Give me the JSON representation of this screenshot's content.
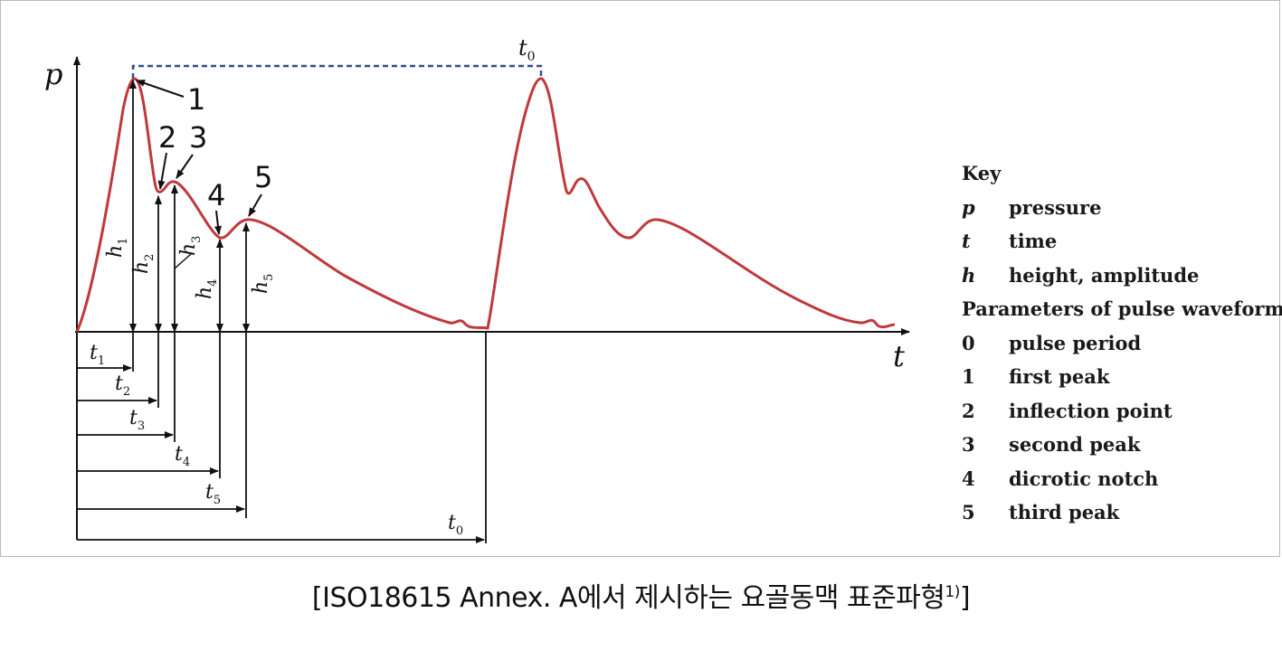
{
  "diagram": {
    "axis_p": "p",
    "axis_t": "t",
    "period_label": "t",
    "period_sub": "0",
    "point_labels": [
      "1",
      "2",
      "3",
      "4",
      "5"
    ],
    "heights": [
      {
        "sym": "h",
        "sub": "1"
      },
      {
        "sym": "h",
        "sub": "2"
      },
      {
        "sym": "h",
        "sub": "3"
      },
      {
        "sym": "h",
        "sub": "4"
      },
      {
        "sym": "h",
        "sub": "5"
      }
    ],
    "times": [
      {
        "sym": "t",
        "sub": "1"
      },
      {
        "sym": "t",
        "sub": "2"
      },
      {
        "sym": "t",
        "sub": "3"
      },
      {
        "sym": "t",
        "sub": "4"
      },
      {
        "sym": "t",
        "sub": "5"
      },
      {
        "sym": "t",
        "sub": "0"
      }
    ],
    "colors": {
      "waveform": "#c0393b",
      "period_dash": "#2f4f8f",
      "axes": "#111111"
    }
  },
  "key": {
    "title": "Key",
    "rows": [
      {
        "sym": "p",
        "text": "pressure",
        "italic": true
      },
      {
        "sym": "t",
        "text": "time",
        "italic": true
      },
      {
        "sym": "h",
        "text": "height, amplitude",
        "italic": true
      }
    ],
    "subtitle": "Parameters of pulse waveform:",
    "params": [
      {
        "sym": "0",
        "text": "pulse period"
      },
      {
        "sym": "1",
        "text": "first peak"
      },
      {
        "sym": "2",
        "text": "inflection point"
      },
      {
        "sym": "3",
        "text": "second peak"
      },
      {
        "sym": "4",
        "text": "dicrotic notch"
      },
      {
        "sym": "5",
        "text": "third peak"
      }
    ]
  },
  "caption": {
    "text": "[ISO18615 Annex. A에서 제시하는 요골동맥 표준파형",
    "sup": "1)",
    "close": "]"
  }
}
